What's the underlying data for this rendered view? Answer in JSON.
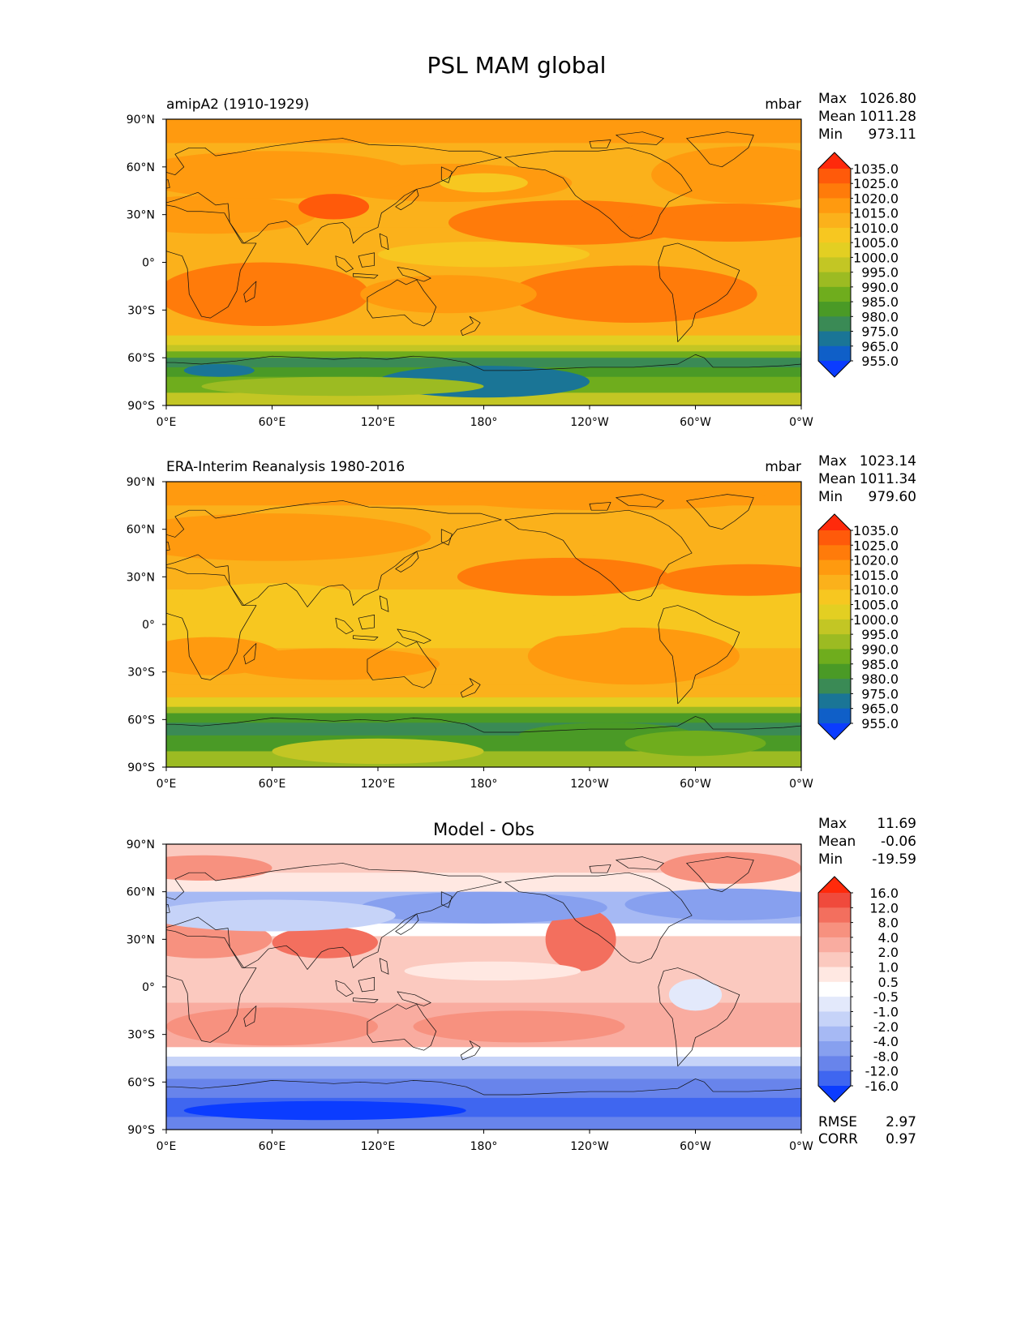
{
  "title": "PSL MAM global",
  "axes": {
    "lat_ticks": [
      "90°N",
      "60°N",
      "30°N",
      "0°",
      "30°S",
      "60°S",
      "90°S"
    ],
    "lon_ticks": [
      "0°E",
      "60°E",
      "120°E",
      "180°",
      "120°W",
      "60°W",
      "0°W"
    ]
  },
  "panels": [
    {
      "left_title": "amipA2 (1910-1929)",
      "center_title": "",
      "units": "mbar",
      "stats": [
        {
          "label": "Max",
          "value": "1026.80"
        },
        {
          "label": "Mean",
          "value": "1011.28"
        },
        {
          "label": "Min",
          "value": "973.11"
        }
      ],
      "colorbar_labels": [
        "1035.0",
        "1025.0",
        "1020.0",
        "1015.0",
        "1010.0",
        "1005.0",
        "1000.0",
        "995.0",
        "990.0",
        "985.0",
        "980.0",
        "975.0",
        "965.0",
        "955.0"
      ],
      "metrics": []
    },
    {
      "left_title": "ERA-Interim Reanalysis 1980-2016",
      "center_title": "",
      "units": "mbar",
      "stats": [
        {
          "label": "Max",
          "value": "1023.14"
        },
        {
          "label": "Mean",
          "value": "1011.34"
        },
        {
          "label": "Min",
          "value": "979.60"
        }
      ],
      "colorbar_labels": [
        "1035.0",
        "1025.0",
        "1020.0",
        "1015.0",
        "1010.0",
        "1005.0",
        "1000.0",
        "995.0",
        "990.0",
        "985.0",
        "980.0",
        "975.0",
        "965.0",
        "955.0"
      ],
      "metrics": []
    },
    {
      "left_title": "",
      "center_title": "Model - Obs",
      "units": "",
      "stats": [
        {
          "label": "Max",
          "value": "11.69"
        },
        {
          "label": "Mean",
          "value": "-0.06"
        },
        {
          "label": "Min",
          "value": "-19.59"
        }
      ],
      "colorbar_labels": [
        "16.0",
        "12.0",
        "8.0",
        "4.0",
        "2.0",
        "1.0",
        "0.5",
        "-0.5",
        "-1.0",
        "-2.0",
        "-4.0",
        "-8.0",
        "-12.0",
        "-16.0"
      ],
      "metrics": [
        {
          "label": "RMSE",
          "value": "2.97"
        },
        {
          "label": "CORR",
          "value": "0.97"
        }
      ]
    }
  ],
  "colors": {
    "psl_scale": [
      "#ff2a0b",
      "#ff5a0a",
      "#ff7b0a",
      "#ff9a0f",
      "#fbb11b",
      "#f7c720",
      "#e3cf22",
      "#c3c624",
      "#9cbb22",
      "#6fad1d",
      "#4a9a26",
      "#3a8a55",
      "#1a7596",
      "#0f5fc8",
      "#0b3cff"
    ],
    "diff_scale": [
      "#ff2a0b",
      "#f04a3c",
      "#f36f5e",
      "#f7917f",
      "#f9aca0",
      "#fbc9bf",
      "#ffe8e2",
      "#ffffff",
      "#e3e9fb",
      "#c6d3f8",
      "#a6b9f4",
      "#87a0ef",
      "#6884eb",
      "#3f66f0",
      "#0b3cff"
    ]
  }
}
